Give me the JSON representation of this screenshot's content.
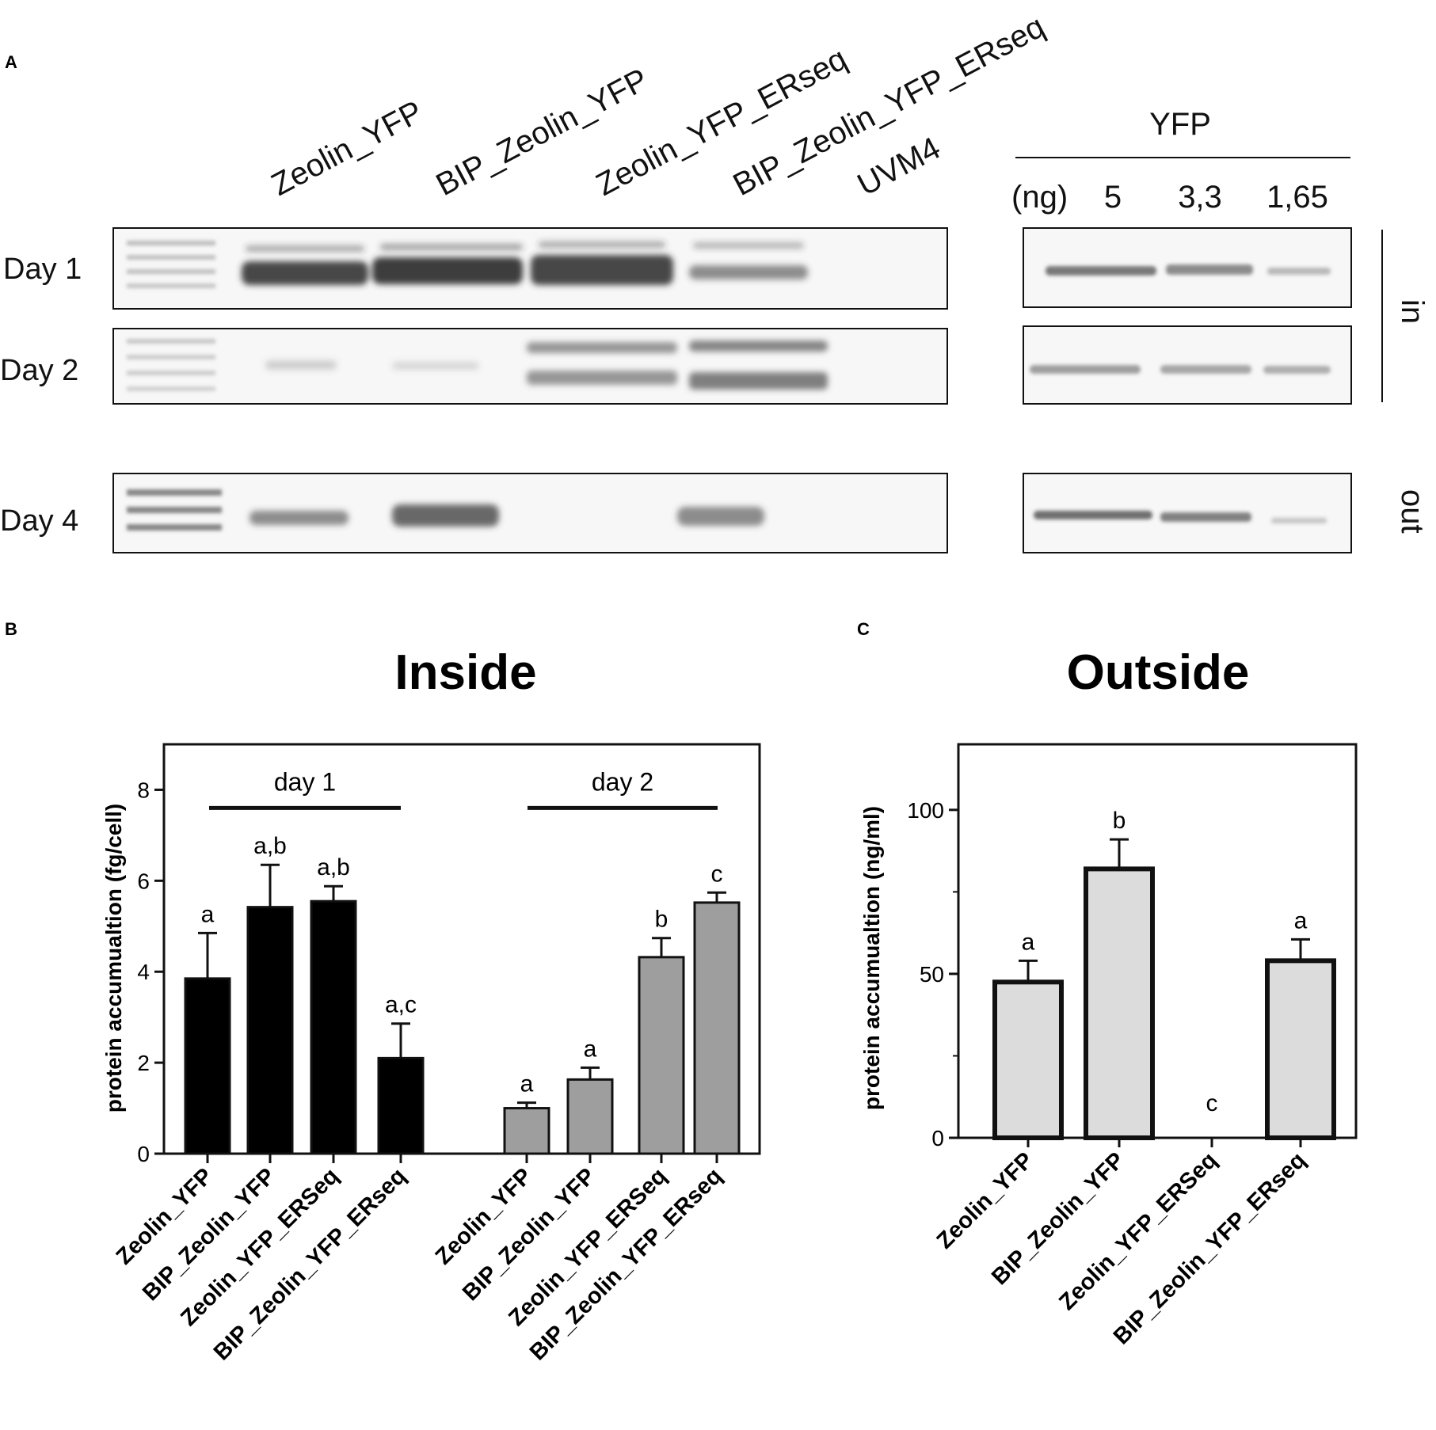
{
  "panels": {
    "a": "A",
    "b": "B",
    "c": "C"
  },
  "blot": {
    "lanes": [
      "Zeolin_YFP",
      "BIP_Zeolin_YFP",
      "Zeolin_YFP_ERseq",
      "BIP_Zeolin_YFP_ERseq",
      "UVM4"
    ],
    "rows": [
      "Day 1",
      "Day 2",
      "Day 4"
    ],
    "standard_title": "YFP",
    "standard_unit": "(ng)",
    "standard_amounts": [
      "5",
      "3,3",
      "1,65"
    ],
    "side_in": "in",
    "side_out": "out"
  },
  "chart_data": [
    {
      "type": "bar",
      "title": "Inside",
      "ylabel": "protein accumualtion (fg/cell)",
      "ylim": [
        0,
        9
      ],
      "yticks": [
        "0",
        "2",
        "4",
        "6",
        "8"
      ],
      "groups": [
        "day 1",
        "day 2"
      ],
      "categories": [
        "Zeolin_YFP",
        "BIP_Zeolin_YFP",
        "Zeolin_YFP_ERSeq",
        "BIP_Zeolin_YFP_ERseq",
        "Zeolin_YFP",
        "BIP_Zeolin_YFP",
        "Zeolin_YFP_ERSeq",
        "BIP_Zeolin_YFP_ERseq"
      ],
      "values": [
        3.85,
        5.42,
        5.55,
        2.1,
        1.0,
        1.63,
        4.32,
        5.52
      ],
      "errors": [
        1.0,
        0.93,
        0.33,
        0.76,
        0.12,
        0.26,
        0.42,
        0.22
      ],
      "significance": [
        "a",
        "a,b",
        "a,b",
        "a,c",
        "a",
        "a",
        "b",
        "c"
      ],
      "colors": [
        "#000000",
        "#000000",
        "#000000",
        "#000000",
        "#9e9e9e",
        "#9e9e9e",
        "#9e9e9e",
        "#9e9e9e"
      ]
    },
    {
      "type": "bar",
      "title": "Outside",
      "ylabel": "protein accumualtion (ng/ml)",
      "ylim": [
        0,
        120
      ],
      "yticks": [
        "0",
        "50",
        "100"
      ],
      "categories": [
        "Zeolin_YFP",
        "BIP_Zeolin_YFP",
        "Zeolin_YFP_ERSeq",
        "BIP_Zeolin_YFP_ERseq"
      ],
      "values": [
        47.5,
        82,
        0,
        54
      ],
      "errors": [
        6.5,
        9,
        0,
        6.5
      ],
      "significance": [
        "a",
        "b",
        "c",
        "a"
      ],
      "colors": [
        "#dcdcdc",
        "#dcdcdc",
        "#dcdcdc",
        "#dcdcdc"
      ]
    }
  ]
}
